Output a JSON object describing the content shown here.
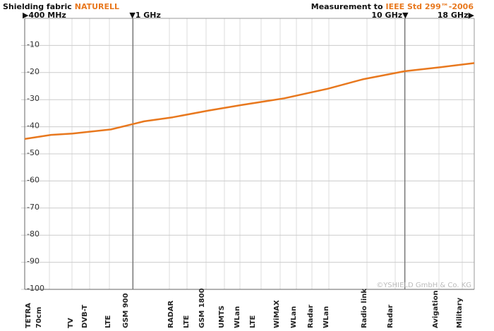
{
  "chart_data": {
    "type": "line",
    "title": "Shielding fabric",
    "product": "NATURELL",
    "measurement": "Measurement to",
    "standard": "IEEE Std 299™-2006",
    "xlog": true,
    "xlim": [
      400,
      18000
    ],
    "xticks": [
      {
        "value": 400,
        "label": "▶400 MHz"
      },
      {
        "value": 1000,
        "label": "▼1 GHz"
      },
      {
        "value": 10000,
        "label": "10 GHz▼"
      },
      {
        "value": 18000,
        "label": "18 GHz▶"
      }
    ],
    "ylim": [
      -100,
      0
    ],
    "yticks": [
      -10,
      -20,
      -30,
      -40,
      -50,
      -60,
      -70,
      -80,
      -90,
      -100
    ],
    "grid": true,
    "band_labels": [
      "TETRA",
      "70cm",
      "TV",
      "DVB-T",
      "LTE",
      "GSM 900",
      "RADAR",
      "LTE",
      "GSM 1800",
      "UMTS",
      "WLan",
      "LTE",
      "WiMAX",
      "WLan",
      "Radar",
      "WLan",
      "Radio link",
      "Radar",
      "Avigation",
      "Military"
    ],
    "x": [
      400,
      500,
      600,
      830,
      1000,
      1100,
      1400,
      1900,
      2500,
      3600,
      5200,
      7000,
      10000,
      13600,
      18000
    ],
    "series": [
      {
        "color": "#e8781e",
        "values": [
          -44.5,
          -43,
          -42.5,
          -41,
          -39,
          -38,
          -36.5,
          -34,
          -32,
          -29.5,
          -26,
          -22.5,
          -19.5,
          -18,
          -16.5
        ]
      }
    ],
    "copyright": "©YSHIELD GmbH & Co. KG"
  }
}
